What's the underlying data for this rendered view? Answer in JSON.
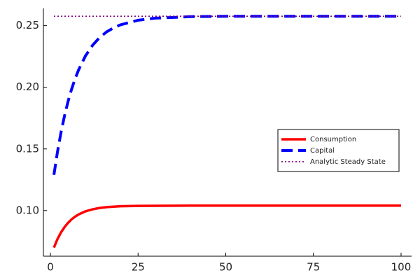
{
  "chart_data": {
    "type": "line",
    "x": [
      1,
      2,
      3,
      4,
      5,
      6,
      7,
      8,
      10,
      12,
      14,
      16,
      18,
      20,
      25,
      30,
      40,
      50,
      60,
      70,
      80,
      90,
      100
    ],
    "series": [
      {
        "name": "Consumption",
        "color": "#ff0000",
        "style": "solid",
        "values": [
          0.07,
          0.0768,
          0.0822,
          0.0865,
          0.09,
          0.0928,
          0.095,
          0.0968,
          0.0994,
          0.101,
          0.1021,
          0.1028,
          0.1032,
          0.1035,
          0.1038,
          0.1039,
          0.104,
          0.104,
          0.104,
          0.104,
          0.104,
          0.104,
          0.104
        ]
      },
      {
        "name": "Capital",
        "color": "#0000ff",
        "style": "dash",
        "values": [
          0.129,
          0.1474,
          0.1631,
          0.1766,
          0.1882,
          0.1981,
          0.2066,
          0.2139,
          0.2255,
          0.234,
          0.2403,
          0.2449,
          0.2482,
          0.2507,
          0.2544,
          0.2561,
          0.2573,
          0.2576,
          0.2576,
          0.2576,
          0.2576,
          0.2576,
          0.2576
        ]
      },
      {
        "name": "Analytic Steady State",
        "color": "#800080",
        "style": "dot",
        "values": [
          0.2576,
          0.2576,
          0.2576,
          0.2576,
          0.2576,
          0.2576,
          0.2576,
          0.2576,
          0.2576,
          0.2576,
          0.2576,
          0.2576,
          0.2576,
          0.2576,
          0.2576,
          0.2576,
          0.2576,
          0.2576,
          0.2576,
          0.2576,
          0.2576,
          0.2576,
          0.2576
        ]
      }
    ],
    "xlim": [
      -2,
      103
    ],
    "xticks": [
      0,
      25,
      50,
      75,
      100
    ],
    "ylim": [
      0.063,
      0.264
    ],
    "yticks": [
      {
        "value": 0.1,
        "label": "0.10"
      },
      {
        "value": 0.15,
        "label": "0.15"
      },
      {
        "value": 0.2,
        "label": "0.20"
      },
      {
        "value": 0.25,
        "label": "0.25"
      }
    ],
    "grid": false,
    "legend": "right"
  }
}
